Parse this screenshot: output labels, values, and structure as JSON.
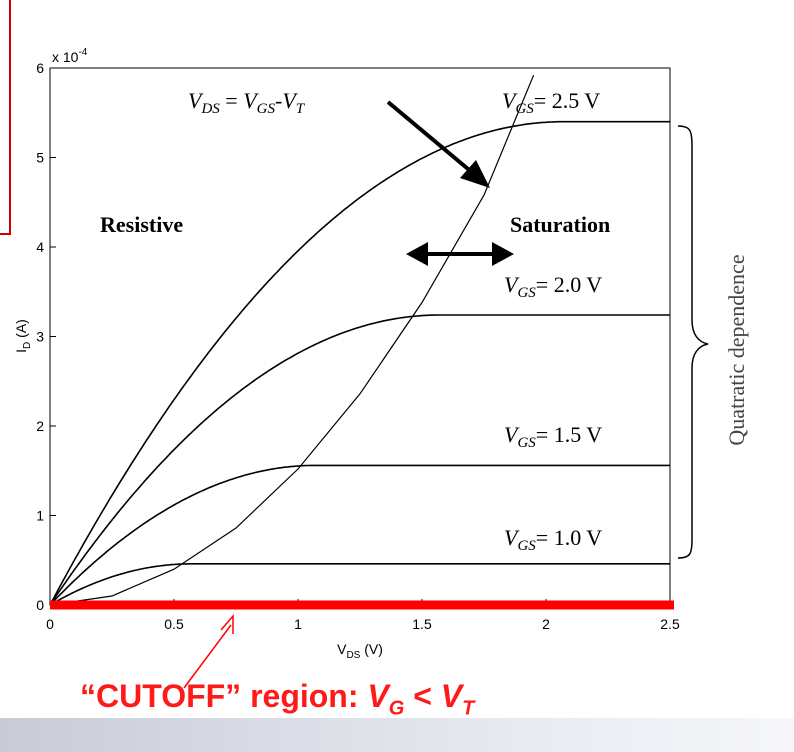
{
  "chart_data": {
    "type": "line",
    "xlabel": "V",
    "xlabel_sub": "DS",
    "xlabel_unit": " (V)",
    "ylabel": "I",
    "ylabel_sub": "D",
    "ylabel_unit": " (A)",
    "y_exponent": "x 10",
    "y_exponent_power": "-4",
    "xlim": [
      0,
      2.5
    ],
    "ylim": [
      0,
      6
    ],
    "x_ticks": [
      "0",
      "0.5",
      "1",
      "1.5",
      "2",
      "2.5"
    ],
    "y_ticks": [
      "0",
      "1",
      "2",
      "3",
      "4",
      "5",
      "6"
    ],
    "grid": false,
    "series": [
      {
        "vgs": 1.0,
        "vt": 0.43,
        "isat": 0.46
      },
      {
        "vgs": 1.5,
        "vt": 0.43,
        "isat": 1.56
      },
      {
        "vgs": 2.0,
        "vt": 0.43,
        "isat": 3.24
      },
      {
        "vgs": 2.5,
        "vt": 0.43,
        "isat": 5.4
      }
    ],
    "boundary_curve": {
      "x": [
        0.0,
        0.25,
        0.5,
        0.75,
        1.0,
        1.25,
        1.5,
        1.75,
        1.95
      ],
      "y": [
        0.0,
        0.1,
        0.4,
        0.86,
        1.52,
        2.36,
        3.38,
        4.58,
        5.92
      ]
    },
    "cutoff_line": {
      "y": 0,
      "color": "#ff0000"
    },
    "labels": {
      "vgs_curves": [
        {
          "v": "V",
          "sub": "GS",
          "text": "= 2.5 V"
        },
        {
          "v": "V",
          "sub": "GS",
          "text": "= 2.0 V"
        },
        {
          "v": "V",
          "sub": "GS",
          "text": "= 1.5 V"
        },
        {
          "v": "V",
          "sub": "GS",
          "text": "= 1.0 V"
        }
      ],
      "boundary_eq": {
        "v1": "V",
        "s1": "DS",
        "eq": " = ",
        "v2": "V",
        "s2": "GS",
        "dash": "-",
        "v3": "V",
        "s3": "T"
      },
      "resistive": "Resistive",
      "saturation": "Saturation",
      "quadratic": "Quatratic dependence",
      "cutoff": {
        "prefix": "“CUTOFF” region: ",
        "vg": "V",
        "vg_sub": "G",
        "lt": " < ",
        "vt": "V",
        "vt_sub": "T"
      }
    },
    "colors": {
      "curve": "#000000",
      "cutoff": "#ff0000",
      "accent_box": "#d40000"
    }
  }
}
